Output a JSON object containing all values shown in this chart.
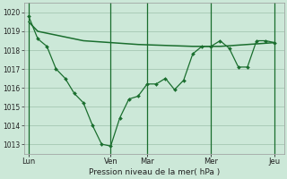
{
  "xlabel": "Pression niveau de la mer( hPa )",
  "bg_color": "#cce8d8",
  "line_color": "#1a6e2e",
  "grid_color": "#aaccb8",
  "ylim": [
    1012.5,
    1020.5
  ],
  "yticks": [
    1013,
    1014,
    1015,
    1016,
    1017,
    1018,
    1019,
    1020
  ],
  "xtick_labels": [
    "Lun",
    "Ven",
    "Mar",
    "Mer",
    "Jeu"
  ],
  "xtick_positions": [
    0,
    9,
    13,
    20,
    27
  ],
  "xlim": [
    -0.5,
    28
  ],
  "line1_x": [
    0,
    1,
    2,
    3,
    4,
    5,
    6,
    7,
    8,
    9,
    10,
    11,
    12,
    13,
    14,
    15,
    16,
    17,
    18,
    19,
    20,
    21,
    22,
    23,
    24,
    25,
    26,
    27
  ],
  "line1_y": [
    1019.8,
    1018.6,
    1018.2,
    1017.0,
    1016.5,
    1015.7,
    1015.2,
    1014.0,
    1013.0,
    1012.9,
    1014.4,
    1015.4,
    1015.55,
    1016.2,
    1016.2,
    1016.5,
    1015.9,
    1016.4,
    1017.8,
    1018.2,
    1018.2,
    1018.5,
    1018.1,
    1017.1,
    1017.1,
    1018.5,
    1018.5,
    1018.4
  ],
  "line2_x": [
    0,
    1,
    3,
    6,
    9,
    12,
    15,
    18,
    21,
    24,
    27
  ],
  "line2_y": [
    1019.5,
    1019.0,
    1018.8,
    1018.5,
    1018.4,
    1018.3,
    1018.25,
    1018.2,
    1018.2,
    1018.3,
    1018.4
  ],
  "vline_x": [
    0,
    9,
    13,
    20,
    27
  ]
}
